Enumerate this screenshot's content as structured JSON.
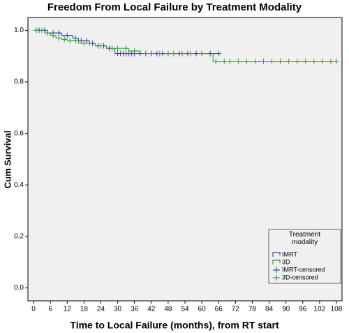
{
  "chart_data": {
    "type": "line",
    "title": "Freedom From Local Failure by Treatment Modality",
    "x_label": "Time to Local Failure (months), from RT start",
    "y_label": "Cum Survival",
    "xlim": [
      -2,
      110
    ],
    "ylim": [
      -0.05,
      1.05
    ],
    "xticks": [
      0,
      6,
      12,
      18,
      24,
      30,
      36,
      42,
      48,
      54,
      60,
      66,
      72,
      78,
      84,
      90,
      96,
      102,
      108
    ],
    "yticks": [
      {
        "value": 0,
        "label": "0.0"
      },
      0.2,
      0.4,
      0.6,
      0.8,
      {
        "value": 1,
        "label": "1.0"
      }
    ],
    "grid": false,
    "legend_title": "Treatment modality",
    "legend_position": "lower right",
    "series": [
      {
        "name": "IMRT",
        "color": "#3a4ba0",
        "style": "step",
        "x": [
          0,
          5,
          10,
          14,
          16,
          20,
          22,
          26,
          29,
          67
        ],
        "values": [
          1,
          0.99,
          0.98,
          0.97,
          0.96,
          0.95,
          0.94,
          0.93,
          0.91,
          0.91
        ]
      },
      {
        "name": "3D",
        "color": "#3aa040",
        "style": "step",
        "x": [
          0,
          4,
          6,
          8,
          10,
          12,
          16,
          22,
          26,
          34,
          38,
          64,
          108
        ],
        "values": [
          1,
          0.99,
          0.98,
          0.97,
          0.965,
          0.96,
          0.95,
          0.94,
          0.93,
          0.92,
          0.91,
          0.88,
          0.88
        ]
      },
      {
        "name": "IMRT-censored",
        "color": "#3a4ba0",
        "style": "censored",
        "x": [
          2,
          4,
          7,
          9,
          12,
          15,
          17,
          19,
          21,
          23,
          25,
          27,
          28,
          30,
          31,
          32,
          33,
          34,
          35,
          36,
          38,
          40,
          42,
          44,
          46,
          48,
          50,
          52,
          55,
          58,
          60,
          63,
          66
        ],
        "values": [
          1,
          1,
          0.99,
          0.99,
          0.98,
          0.97,
          0.96,
          0.96,
          0.95,
          0.94,
          0.94,
          0.93,
          0.93,
          0.91,
          0.91,
          0.91,
          0.91,
          0.91,
          0.91,
          0.91,
          0.91,
          0.91,
          0.91,
          0.91,
          0.91,
          0.91,
          0.91,
          0.91,
          0.91,
          0.91,
          0.91,
          0.91,
          0.91
        ]
      },
      {
        "name": "3D-censored",
        "color": "#3aa040",
        "style": "censored",
        "x": [
          1,
          3,
          5,
          7,
          9,
          11,
          13,
          15,
          18,
          20,
          24,
          28,
          30,
          33,
          36,
          40,
          42,
          45,
          48,
          50,
          53,
          56,
          60,
          65,
          68,
          70,
          73,
          76,
          79,
          82,
          85,
          88,
          91,
          94,
          97,
          100,
          103,
          106,
          108
        ],
        "values": [
          1,
          1,
          0.99,
          0.98,
          0.97,
          0.965,
          0.96,
          0.96,
          0.95,
          0.95,
          0.94,
          0.93,
          0.93,
          0.93,
          0.92,
          0.91,
          0.91,
          0.91,
          0.91,
          0.91,
          0.91,
          0.91,
          0.91,
          0.88,
          0.88,
          0.88,
          0.88,
          0.88,
          0.88,
          0.88,
          0.88,
          0.88,
          0.88,
          0.88,
          0.88,
          0.88,
          0.88,
          0.88,
          0.88
        ]
      }
    ]
  }
}
